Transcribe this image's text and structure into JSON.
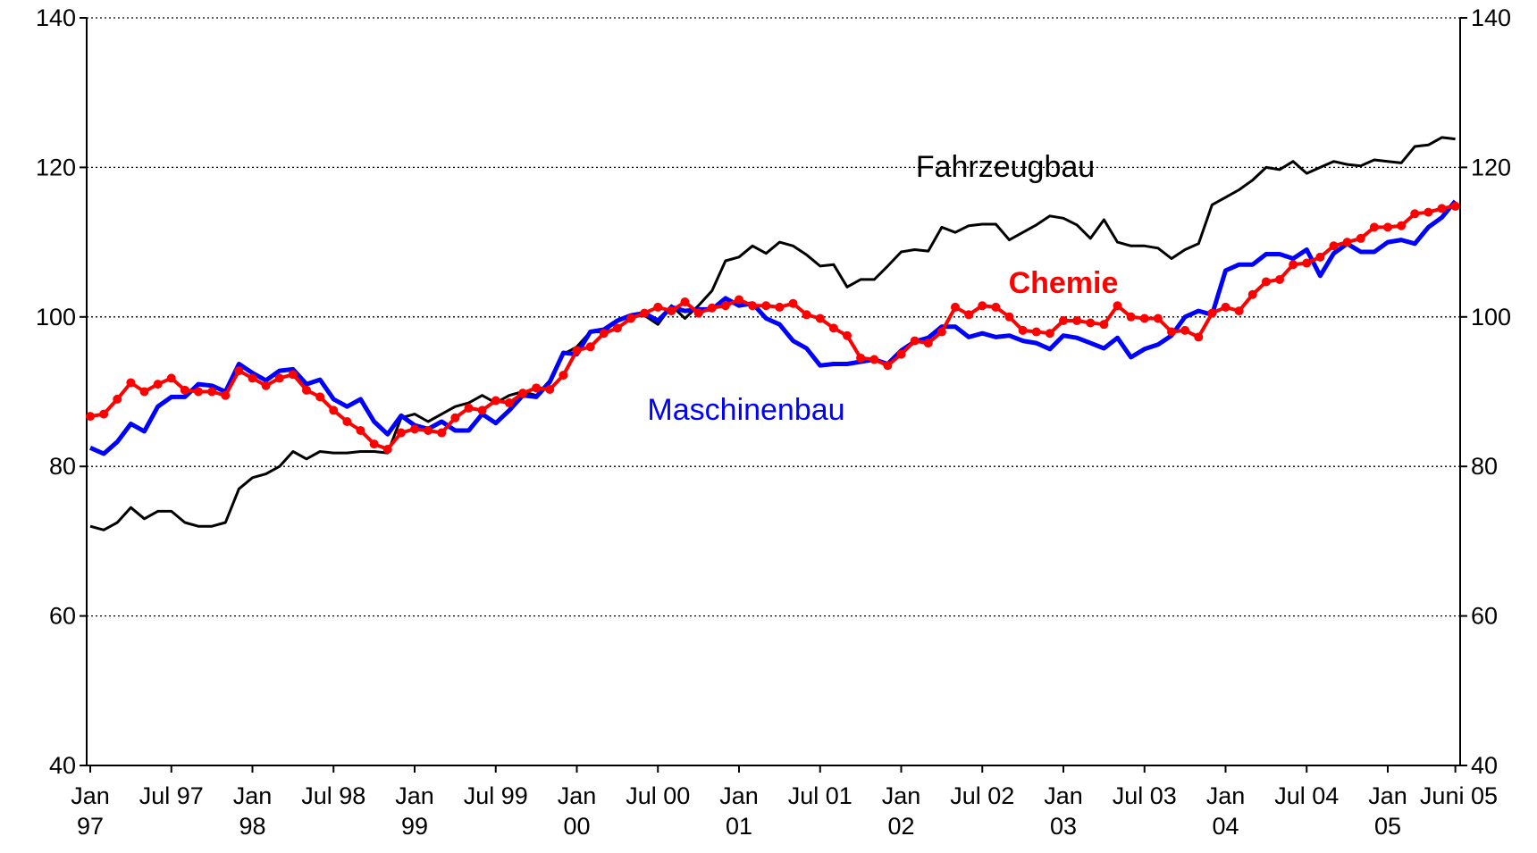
{
  "chart_data": {
    "type": "line",
    "categories": [
      "Jan 97",
      null,
      null,
      null,
      null,
      null,
      "Jul 97",
      null,
      null,
      null,
      null,
      null,
      "Jan 98",
      null,
      null,
      null,
      null,
      null,
      "Jul 98",
      null,
      null,
      null,
      null,
      null,
      "Jan 99",
      null,
      null,
      null,
      null,
      null,
      "Jul 99",
      null,
      null,
      null,
      null,
      null,
      "Jan 00",
      null,
      null,
      null,
      null,
      null,
      "Jul 00",
      null,
      null,
      null,
      null,
      null,
      "Jan 01",
      null,
      null,
      null,
      null,
      null,
      "Jul 01",
      null,
      null,
      null,
      null,
      null,
      "Jan 02",
      null,
      null,
      null,
      null,
      null,
      "Jul 02",
      null,
      null,
      null,
      null,
      null,
      "Jan 03",
      null,
      null,
      null,
      null,
      null,
      "Jul 03",
      null,
      null,
      null,
      null,
      null,
      "Jan 04",
      null,
      null,
      null,
      null,
      null,
      "Jul 04",
      null,
      null,
      null,
      null,
      null,
      "Jan 05",
      null,
      null,
      null,
      null,
      "Juni 05"
    ],
    "ylim": [
      40,
      140
    ],
    "yticks": [
      40,
      60,
      80,
      100,
      120,
      140
    ],
    "grid": true,
    "series": [
      {
        "name": "Fahrzeugbau",
        "color": "#000000",
        "values": [
          72,
          71.5,
          72.5,
          74.5,
          73,
          74,
          74,
          72.5,
          72,
          72,
          72.5,
          77,
          78.5,
          79,
          80,
          82,
          81,
          82,
          81.8,
          81.8,
          82,
          82,
          81.8,
          86.5,
          87,
          86,
          87,
          88,
          88.5,
          89.5,
          88.5,
          89.5,
          90,
          89.5,
          91.5,
          95,
          96,
          98,
          98,
          99.5,
          100,
          100.2,
          99,
          101.5,
          99.8,
          101.5,
          103.5,
          107.5,
          108,
          109.5,
          108.5,
          110,
          109.5,
          108.3,
          106.8,
          107,
          104,
          105,
          105,
          106.8,
          108.7,
          109,
          108.8,
          112,
          111.3,
          112.2,
          112.4,
          112.4,
          110.3,
          111.3,
          112.3,
          113.5,
          113.2,
          112.3,
          110.5,
          113,
          110,
          109.5,
          109.5,
          109.2,
          107.8,
          109,
          109.8,
          115,
          116,
          117,
          118.3,
          120,
          119.7,
          120.8,
          119.2,
          120,
          120.8,
          120.4,
          120.2,
          121,
          120.8,
          120.6,
          122.8,
          123,
          124,
          123.8
        ]
      },
      {
        "name": "Chemie",
        "color": "#ff0000",
        "values": [
          86.7,
          87,
          89,
          91.2,
          90,
          91,
          91.8,
          90.2,
          90,
          90,
          89.5,
          92.8,
          91.8,
          90.8,
          91.8,
          92.3,
          90.2,
          89.3,
          87.5,
          86,
          84.8,
          83,
          82.3,
          84.5,
          85,
          84.8,
          84.5,
          86.5,
          87.8,
          87.5,
          88.8,
          88.5,
          89.8,
          90.5,
          90.3,
          92.2,
          95.5,
          96,
          97.8,
          98.5,
          99.8,
          100.5,
          101.3,
          100.8,
          102,
          100.5,
          101.2,
          101.5,
          102.3,
          101.5,
          101.5,
          101.3,
          101.8,
          100.3,
          99.8,
          98.5,
          97.5,
          94.5,
          94.3,
          93.5,
          95,
          96.8,
          96.5,
          98,
          101.3,
          100.3,
          101.5,
          101.3,
          100,
          98.2,
          98,
          97.8,
          99.5,
          99.5,
          99.2,
          99,
          101.5,
          100,
          99.8,
          99.8,
          98,
          98.2,
          97.3,
          100.5,
          101.3,
          100.8,
          103,
          104.7,
          105,
          107,
          107.2,
          108,
          109.5,
          110,
          110.5,
          112,
          112,
          112.2,
          113.8,
          114,
          114.5,
          114.8
        ]
      },
      {
        "name": "Maschinenbau",
        "color": "#0000ff",
        "values": [
          82.5,
          81.7,
          83.3,
          85.7,
          84.7,
          88,
          89.3,
          89.3,
          91,
          90.8,
          90,
          93.7,
          92.5,
          91.5,
          92.8,
          93,
          91,
          91.6,
          89,
          88,
          89,
          86,
          84.3,
          86.8,
          85.5,
          85,
          86,
          84.8,
          84.8,
          87,
          85.8,
          87.5,
          89.5,
          89.3,
          91.3,
          95.2,
          95,
          98,
          98.3,
          99.5,
          100.2,
          100.5,
          99.5,
          101.3,
          100.8,
          101,
          101,
          102.5,
          101.5,
          101.8,
          99.8,
          99,
          96.8,
          95.8,
          93.5,
          93.7,
          93.7,
          94,
          94.3,
          93.7,
          95.5,
          96.7,
          97.2,
          98.7,
          98.7,
          97.3,
          97.8,
          97.3,
          97.5,
          96.8,
          96.5,
          95.7,
          97.5,
          97.2,
          96.5,
          95.8,
          97.2,
          94.6,
          95.7,
          96.3,
          97.5,
          100,
          100.8,
          100.3,
          106.2,
          107,
          107,
          108.4,
          108.4,
          107.8,
          109,
          105.5,
          108.5,
          109.8,
          108.7,
          108.7,
          110,
          110.3,
          109.8,
          112,
          113.3,
          115.5
        ]
      }
    ]
  }
}
